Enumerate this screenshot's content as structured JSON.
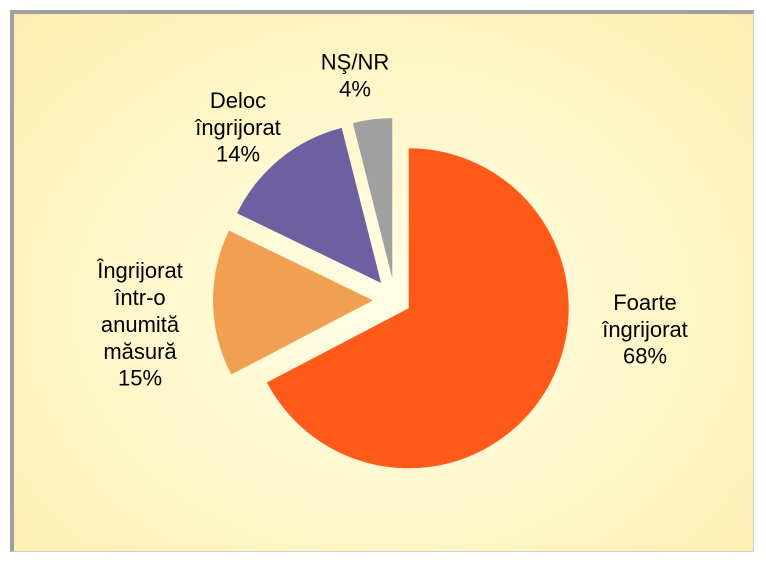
{
  "chart_data": {
    "type": "pie",
    "categories": [
      "Foarte\nîngrijorat",
      "Îngrijorat\nîntr-o\nanumită\nmăsură",
      "Deloc\nîngrijorat",
      "NŞ/NR"
    ],
    "values": [
      68,
      15,
      14,
      4
    ],
    "value_labels": [
      "68%",
      "15%",
      "14%",
      "4%"
    ],
    "colors": [
      "#ff5a1a",
      "#f0a050",
      "#6e5fa0",
      "#a0a0a0"
    ]
  }
}
